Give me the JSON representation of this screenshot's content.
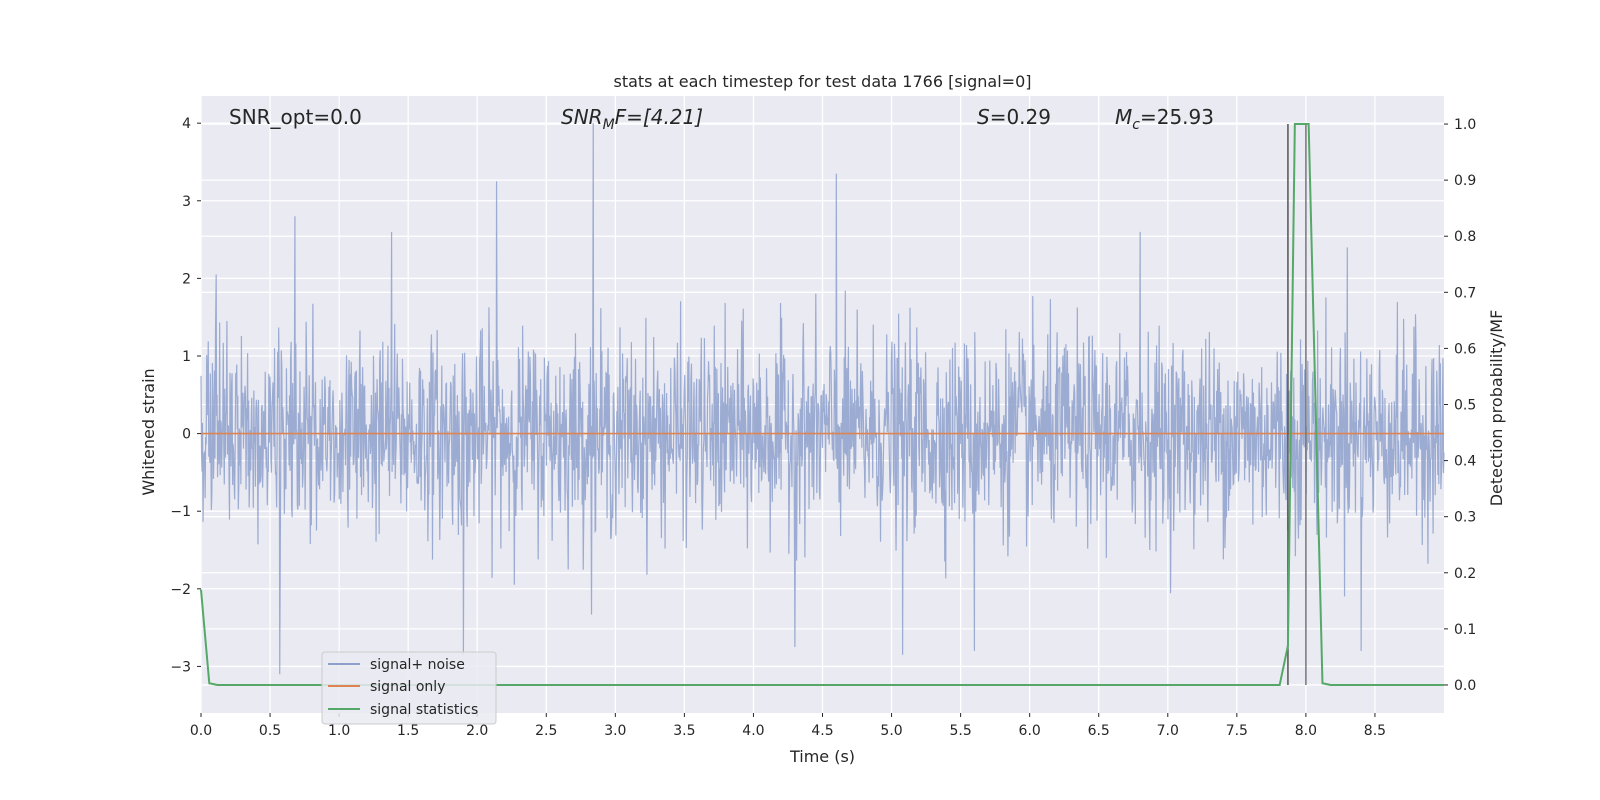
{
  "chart_data": {
    "type": "line",
    "title": "stats at each timestep for test data 1766 [signal=0]",
    "xlabel": "Time (s)",
    "ylabel": "Whitened strain",
    "y2label": "Detection probability/MF",
    "xlim": [
      0.0,
      9.0
    ],
    "ylim": [
      -3.6,
      4.35
    ],
    "y2lim": [
      -0.05,
      1.05
    ],
    "x_ticks": [
      0.0,
      0.5,
      1.0,
      1.5,
      2.0,
      2.5,
      3.0,
      3.5,
      4.0,
      4.5,
      5.0,
      5.5,
      6.0,
      6.5,
      7.0,
      7.5,
      8.0,
      8.5
    ],
    "x_tick_labels": [
      "0.0",
      "0.5",
      "1.0",
      "1.5",
      "2.0",
      "2.5",
      "3.0",
      "3.5",
      "4.0",
      "4.5",
      "5.0",
      "5.5",
      "6.0",
      "6.5",
      "7.0",
      "7.5",
      "8.0",
      "8.5"
    ],
    "y_ticks": [
      -3,
      -2,
      -1,
      0,
      1,
      2,
      3,
      4
    ],
    "y_tick_labels": [
      "−3",
      "−2",
      "−1",
      "0",
      "1",
      "2",
      "3",
      "4"
    ],
    "y2_ticks": [
      0.0,
      0.1,
      0.2,
      0.3,
      0.4,
      0.5,
      0.6,
      0.7,
      0.8,
      0.9,
      1.0
    ],
    "y2_tick_labels": [
      "0.0",
      "0.1",
      "0.2",
      "0.3",
      "0.4",
      "0.5",
      "0.6",
      "0.7",
      "0.8",
      "0.9",
      "1.0"
    ],
    "grid": true,
    "legend_position": "lower-left",
    "series": [
      {
        "name": "signal+ noise",
        "color": "#8da0cb",
        "description_values": "whitened noise, roughly Gaussian with unit variance, peaks near 4.0 at t=2.84 and 3.3 at t=4.6, lows near -3.1 at t=0.57 and -2.85 at t=5.1",
        "peaks": [
          {
            "x": 0.11,
            "y": 2.05
          },
          {
            "x": 0.68,
            "y": 2.8
          },
          {
            "x": 1.38,
            "y": 2.6
          },
          {
            "x": 2.14,
            "y": 3.25
          },
          {
            "x": 2.84,
            "y": 4.0
          },
          {
            "x": 4.6,
            "y": 3.35
          },
          {
            "x": 6.8,
            "y": 2.6
          },
          {
            "x": 8.3,
            "y": 2.4
          }
        ],
        "troughs": [
          {
            "x": 0.57,
            "y": -3.1
          },
          {
            "x": 1.9,
            "y": -2.85
          },
          {
            "x": 4.3,
            "y": -2.75
          },
          {
            "x": 5.08,
            "y": -2.85
          },
          {
            "x": 5.6,
            "y": -2.8
          },
          {
            "x": 8.4,
            "y": -2.8
          }
        ]
      },
      {
        "name": "signal only",
        "color": "#dd8452",
        "x": [
          0.0,
          9.0
        ],
        "y": [
          0.0,
          0.0
        ]
      },
      {
        "name": "signal statistics",
        "color": "#55a868",
        "axis": "right",
        "x": [
          0.0,
          0.06,
          0.12,
          7.81,
          7.87,
          7.92,
          7.97,
          8.02,
          8.07,
          8.12,
          8.18,
          9.0
        ],
        "y": [
          0.17,
          0.003,
          0.0,
          0.0,
          0.07,
          1.0,
          1.0,
          1.0,
          0.5,
          0.003,
          0.0,
          0.0
        ]
      }
    ],
    "vlines": [
      {
        "x": 7.87,
        "ymin": 0.0,
        "ymax": 1.0,
        "color": "#555555"
      },
      {
        "x": 8.0,
        "ymin": 0.0,
        "ymax": 1.0,
        "color": "#777777"
      }
    ],
    "annotations": {
      "snr_opt": "SNR_opt=0.0",
      "snr_mf_main": "SNR",
      "snr_mf_sub": "M",
      "snr_mf_rest": "F=[4.21]",
      "s_main": "S",
      "s_rest": "=0.29",
      "mc_main": "M",
      "mc_sub": "c",
      "mc_rest": "=25.93"
    }
  }
}
